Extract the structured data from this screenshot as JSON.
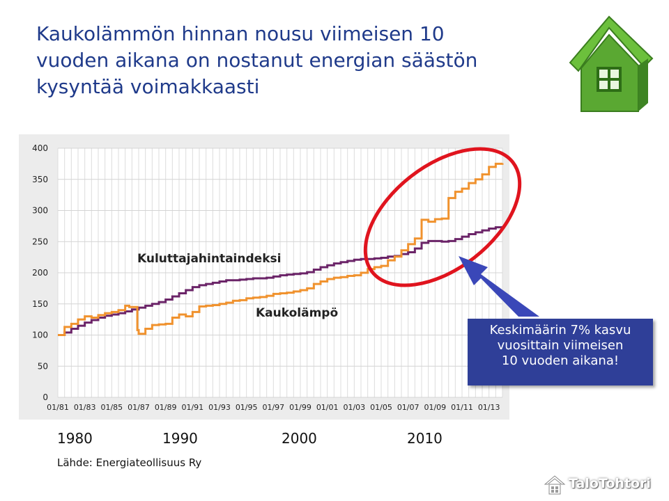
{
  "title_lines": [
    "Kaukolämmön hinnan nousu viimeisen 10",
    "vuoden aikana on nostanut energian säästön",
    "kysyntää voimakkaasti"
  ],
  "callout_lines": [
    "Keskimäärin 7% kasvu",
    "vuosittain viimeisen",
    "10 vuoden aikana!"
  ],
  "decade_labels": [
    "1980",
    "1990",
    "2000",
    "2010"
  ],
  "source": "Lähde: Energiateollisuus Ry",
  "brand": "TaloTohtori",
  "colors": {
    "title": "#1f3a8a",
    "kaukolampo": "#f0922e",
    "kuluttajahintaindeksi": "#6b2468",
    "highlight_ellipse": "#e0141e",
    "callout_bg": "#2f3f98",
    "logo_green": "#5aa832"
  },
  "icons": {
    "logo": "green-house-icon",
    "brand": "house-brand-icon"
  },
  "chart_data": {
    "type": "line",
    "ylim": [
      0,
      400
    ],
    "yticks": [
      0,
      50,
      100,
      150,
      200,
      250,
      300,
      350,
      400
    ],
    "xlim": [
      1981,
      2014
    ],
    "xtick_labels": [
      "01/81",
      "01/83",
      "01/85",
      "01/87",
      "01/89",
      "01/91",
      "01/93",
      "01/95",
      "01/97",
      "01/99",
      "01/01",
      "01/03",
      "01/05",
      "01/07",
      "01/09",
      "01/11",
      "01/13"
    ],
    "grid": true,
    "series": [
      {
        "name": "Kuluttajahintaindeksi",
        "x": [
          1981,
          1981.5,
          1982,
          1982.5,
          1983,
          1983.5,
          1984,
          1984.5,
          1985,
          1985.5,
          1986,
          1986.5,
          1987,
          1987.5,
          1988,
          1988.5,
          1989,
          1989.5,
          1990,
          1990.5,
          1991,
          1991.5,
          1992,
          1992.5,
          1993,
          1993.5,
          1994,
          1994.5,
          1995,
          1995.5,
          1996,
          1996.5,
          1997,
          1997.5,
          1998,
          1998.5,
          1999,
          1999.5,
          2000,
          2000.5,
          2001,
          2001.5,
          2002,
          2002.5,
          2003,
          2003.5,
          2004,
          2004.5,
          2005,
          2005.5,
          2006,
          2006.5,
          2007,
          2007.5,
          2008,
          2008.5,
          2009,
          2009.5,
          2010,
          2010.5,
          2011,
          2011.5,
          2012,
          2012.5,
          2013,
          2013.5,
          2014
        ],
        "y": [
          100,
          104,
          110,
          115,
          120,
          124,
          128,
          131,
          133,
          135,
          138,
          141,
          144,
          147,
          150,
          153,
          157,
          162,
          167,
          172,
          177,
          180,
          182,
          184,
          186,
          188,
          188,
          189,
          190,
          191,
          191,
          192,
          194,
          196,
          197,
          198,
          199,
          201,
          205,
          209,
          212,
          215,
          217,
          219,
          221,
          222,
          222,
          223,
          224,
          226,
          227,
          230,
          233,
          239,
          248,
          251,
          251,
          250,
          251,
          254,
          258,
          262,
          265,
          268,
          271,
          273,
          275
        ]
      },
      {
        "name": "Kaukolämpö",
        "x": [
          1981,
          1981.5,
          1982,
          1982.5,
          1983,
          1983.5,
          1984,
          1984.5,
          1985,
          1985.5,
          1986,
          1986.3,
          1986.9,
          1987,
          1987.5,
          1988,
          1988.5,
          1989,
          1989.5,
          1990,
          1990.5,
          1991,
          1991.5,
          1992,
          1992.5,
          1993,
          1993.5,
          1994,
          1994.5,
          1995,
          1995.5,
          1996,
          1996.5,
          1997,
          1997.5,
          1998,
          1998.5,
          1999,
          1999.5,
          2000,
          2000.5,
          2001,
          2001.5,
          2002,
          2002.5,
          2003,
          2003.5,
          2004,
          2004.5,
          2005,
          2005.5,
          2006,
          2006.5,
          2007,
          2007.5,
          2008,
          2008.5,
          2009,
          2009.5,
          2010,
          2010.5,
          2011,
          2011.5,
          2012,
          2012.5,
          2013,
          2013.5,
          2014
        ],
        "y": [
          100,
          113,
          118,
          125,
          130,
          128,
          132,
          135,
          137,
          140,
          147,
          145,
          108,
          102,
          110,
          116,
          117,
          118,
          128,
          133,
          130,
          137,
          146,
          147,
          148,
          150,
          152,
          155,
          156,
          159,
          160,
          161,
          163,
          166,
          167,
          168,
          170,
          172,
          175,
          182,
          186,
          190,
          192,
          193,
          195,
          196,
          200,
          206,
          209,
          211,
          220,
          226,
          236,
          246,
          255,
          285,
          282,
          286,
          287,
          320,
          330,
          335,
          344,
          350,
          358,
          370,
          375,
          376
        ]
      }
    ],
    "annotations": [
      {
        "text": "Kuluttajahintaindeksi",
        "series": "Kuluttajahintaindeksi"
      },
      {
        "text": "Kaukolämpö",
        "series": "Kaukolämpö"
      }
    ]
  }
}
